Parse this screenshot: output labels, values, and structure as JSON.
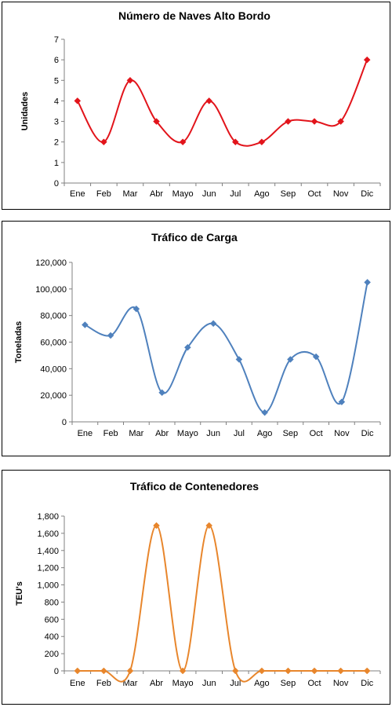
{
  "chart_data": [
    {
      "type": "line",
      "title": "Número de Naves Alto Bordo",
      "xlabel": "",
      "ylabel": "Unidades",
      "categories": [
        "Ene",
        "Feb",
        "Mar",
        "Abr",
        "Mayo",
        "Jun",
        "Jul",
        "Ago",
        "Sep",
        "Oct",
        "Nov",
        "Dic"
      ],
      "series": [
        {
          "values": [
            4,
            2,
            5,
            3,
            2,
            4,
            2,
            2,
            3,
            3,
            3,
            6
          ]
        }
      ],
      "ylim": [
        0,
        7
      ],
      "yticks": [
        "0",
        "1",
        "2",
        "3",
        "4",
        "5",
        "6",
        "7"
      ],
      "smooth": true,
      "color": "#e2141b",
      "marker": "diamond",
      "grid": false,
      "legend": "none"
    },
    {
      "type": "line",
      "title": "Tráfico de Carga",
      "xlabel": "",
      "ylabel": "Toneladas",
      "categories": [
        "Ene",
        "Feb",
        "Mar",
        "Abr",
        "Mayo",
        "Jun",
        "Jul",
        "Ago",
        "Sep",
        "Oct",
        "Nov",
        "Dic"
      ],
      "series": [
        {
          "values": [
            73000,
            65000,
            85000,
            22000,
            56000,
            74000,
            47000,
            7000,
            47000,
            49000,
            15000,
            105000
          ]
        }
      ],
      "ylim": [
        0,
        120000
      ],
      "yticks": [
        "0",
        "20,000",
        "40,000",
        "60,000",
        "80,000",
        "100,000",
        "120,000"
      ],
      "smooth": true,
      "color": "#4f81bd",
      "marker": "diamond",
      "grid": false,
      "legend": "none"
    },
    {
      "type": "line",
      "title": "Tráfico de Contenedores",
      "xlabel": "",
      "ylabel": "TEU's",
      "categories": [
        "Ene",
        "Feb",
        "Mar",
        "Abr",
        "Mayo",
        "Jun",
        "Jul",
        "Ago",
        "Sep",
        "Oct",
        "Nov",
        "Dic"
      ],
      "series": [
        {
          "values": [
            0,
            0,
            0,
            1690,
            0,
            1690,
            0,
            0,
            0,
            0,
            0,
            0
          ]
        }
      ],
      "ylim": [
        0,
        1800
      ],
      "yticks": [
        "0",
        "200",
        "400",
        "600",
        "800",
        "1,000",
        "1,200",
        "1,400",
        "1,600",
        "1,800"
      ],
      "smooth": true,
      "color": "#e8862c",
      "marker": "diamond",
      "grid": false,
      "legend": "none"
    }
  ]
}
